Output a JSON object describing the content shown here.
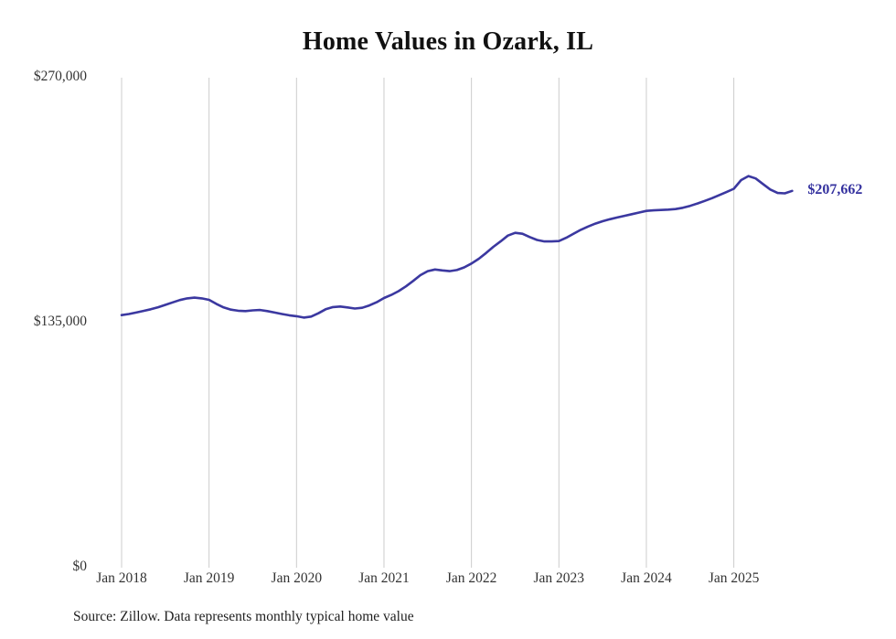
{
  "page": {
    "background": "#ffffff"
  },
  "chart_data": {
    "type": "line",
    "title": "Home Values in Ozark, IL",
    "source_note": "Source: Zillow. Data represents monthly typical home value",
    "end_label": "$207,662",
    "end_value": 207662,
    "line_color": "#3b38a0",
    "grid_color": "#cccccc",
    "grid": "vertical-yearly-only",
    "legend": "none",
    "unit": "USD",
    "cadence": "monthly",
    "x_start": "2018-01",
    "x_end": "2025-09",
    "ylim": [
      0,
      270000
    ],
    "y_ticks": [
      {
        "value": 0,
        "label": "$0"
      },
      {
        "value": 135000,
        "label": "$135,000"
      },
      {
        "value": 270000,
        "label": "$270,000"
      }
    ],
    "x_ticks": [
      {
        "month_index": 0,
        "label": "Jan 2018"
      },
      {
        "month_index": 12,
        "label": "Jan 2019"
      },
      {
        "month_index": 24,
        "label": "Jan 2020"
      },
      {
        "month_index": 36,
        "label": "Jan 2021"
      },
      {
        "month_index": 48,
        "label": "Jan 2022"
      },
      {
        "month_index": 60,
        "label": "Jan 2023"
      },
      {
        "month_index": 72,
        "label": "Jan 2024"
      },
      {
        "month_index": 84,
        "label": "Jan 2025"
      }
    ],
    "series": [
      {
        "name": "Typical home value",
        "values": [
          139200,
          139800,
          140600,
          141500,
          142400,
          143500,
          144800,
          146200,
          147500,
          148400,
          148800,
          148400,
          147600,
          145400,
          143400,
          142200,
          141600,
          141400,
          141800,
          142000,
          141400,
          140600,
          139800,
          139100,
          138600,
          137800,
          138400,
          140200,
          142400,
          143600,
          143900,
          143400,
          142800,
          143200,
          144500,
          146300,
          148600,
          150300,
          152400,
          155000,
          158000,
          161200,
          163400,
          164300,
          163800,
          163400,
          164000,
          165500,
          167600,
          170200,
          173400,
          176800,
          179800,
          183000,
          184500,
          184000,
          182200,
          180600,
          179800,
          179800,
          180000,
          181800,
          184000,
          186200,
          188000,
          189600,
          190900,
          192000,
          193000,
          193900,
          194800,
          195700,
          196600,
          196900,
          197100,
          197300,
          197600,
          198300,
          199400,
          200700,
          202100,
          203600,
          205300,
          207000,
          208800,
          213600,
          215800,
          214500,
          211400,
          208400,
          206500,
          206300,
          207662
        ]
      }
    ]
  }
}
